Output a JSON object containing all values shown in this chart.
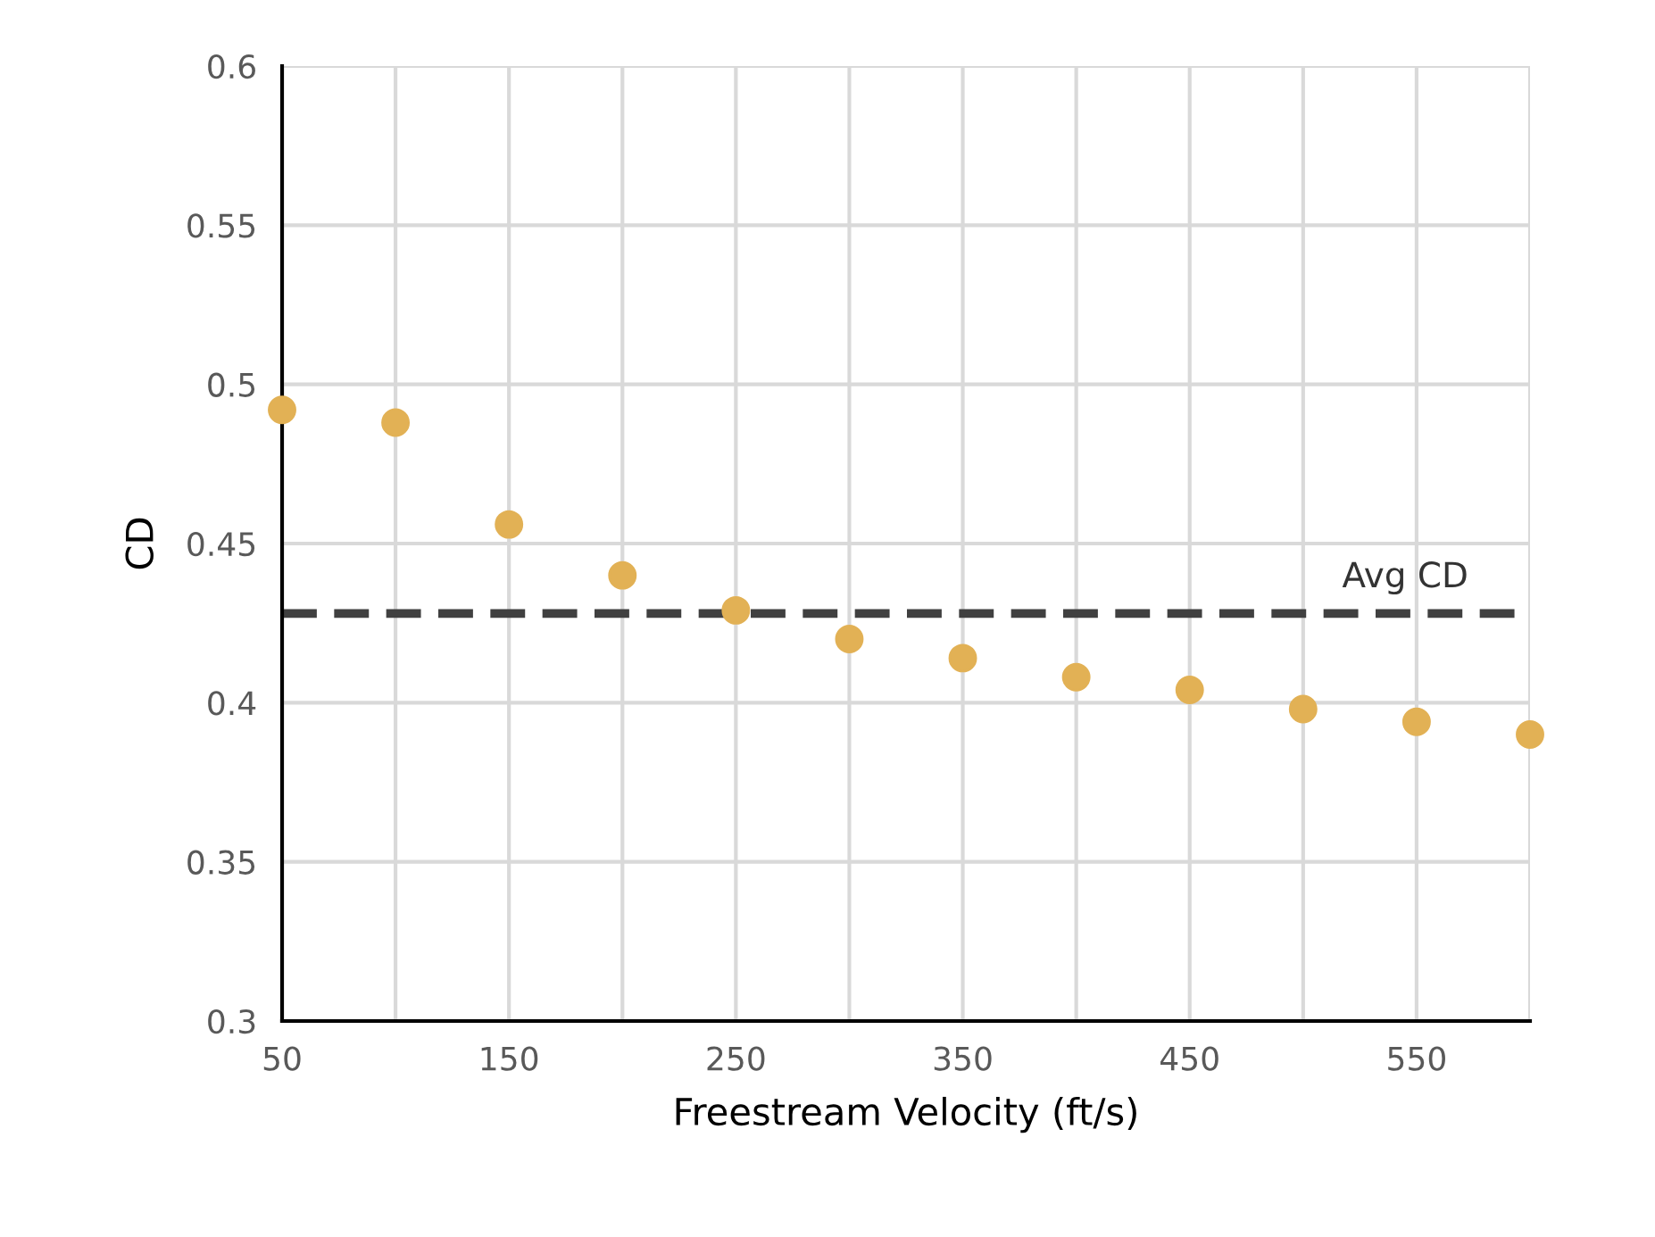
{
  "chart_data": {
    "type": "scatter",
    "xlabel": "Freestream Velocity (ft/s)",
    "ylabel": "CD",
    "x": [
      50,
      100,
      150,
      200,
      250,
      300,
      350,
      400,
      450,
      500,
      550,
      600
    ],
    "series": [
      {
        "color": "#e2b155",
        "values": [
          0.492,
          0.488,
          0.456,
          0.44,
          0.429,
          0.42,
          0.414,
          0.408,
          0.404,
          0.398,
          0.394,
          0.39
        ]
      }
    ],
    "xlim": [
      50,
      600
    ],
    "xticks": [
      50,
      {
        "value": 100,
        "label": null
      },
      150,
      {
        "value": 200,
        "label": null
      },
      250,
      {
        "value": 300,
        "label": null
      },
      350,
      {
        "value": 400,
        "label": null
      },
      450,
      {
        "value": 500,
        "label": null
      },
      550,
      {
        "value": 600,
        "label": null
      }
    ],
    "ylim": [
      0.3,
      0.6
    ],
    "yticks": [
      0.3,
      0.35,
      0.4,
      0.45,
      0.5,
      0.55,
      0.6
    ],
    "ref_lines": [
      {
        "axis": "y",
        "value": 0.428,
        "label": "Avg CD",
        "color": "#404040",
        "line_style": "dashed"
      }
    ],
    "grid": true,
    "marker": "circle"
  }
}
